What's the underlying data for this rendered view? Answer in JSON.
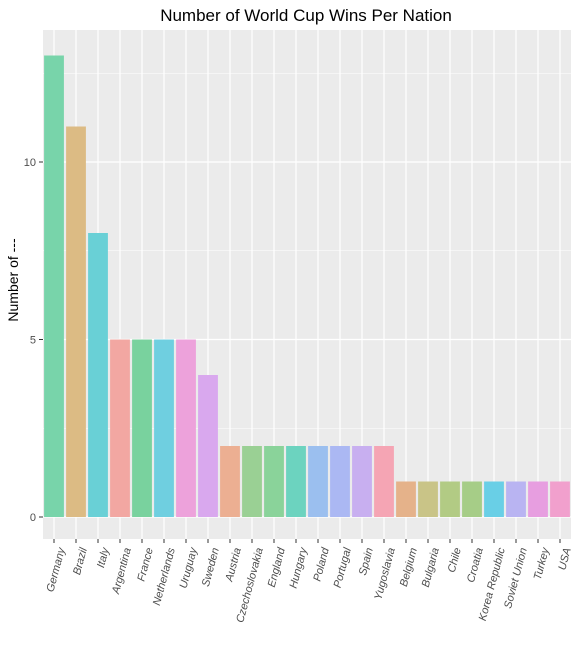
{
  "chart_data": {
    "type": "bar",
    "title": "Number of World Cup Wins Per Nation",
    "xlabel": "",
    "ylabel": "Number of ---",
    "ylim": [
      0,
      13.65
    ],
    "yticks": [
      0,
      5,
      10
    ],
    "ytick_labels": [
      "0",
      "5",
      "10"
    ],
    "grid": true,
    "legend": "none",
    "categories": [
      "Germany",
      "Brazil",
      "Italy",
      "Argentina",
      "France",
      "Netherlands",
      "Uruguay",
      "Sweden",
      "Austria",
      "Czechoslovakia",
      "England",
      "Hungary",
      "Poland",
      "Portugal",
      "Spain",
      "Yugoslavia",
      "Belgium",
      "Bulgaria",
      "Chile",
      "Croatia",
      "Korea Republic",
      "Soviet Union",
      "Turkey",
      "USA"
    ],
    "values": [
      13,
      11,
      8,
      5,
      5,
      5,
      5,
      4,
      2,
      2,
      2,
      2,
      2,
      2,
      2,
      2,
      1,
      1,
      1,
      1,
      1,
      1,
      1,
      1
    ],
    "colors": [
      "#78d4aa",
      "#dcbb84",
      "#69d0d6",
      "#f2a7a2",
      "#79d29e",
      "#6fcfe0",
      "#eda2db",
      "#d9a8ee",
      "#ecaf92",
      "#9ad094",
      "#8ad39a",
      "#6cd3bf",
      "#9bbfef",
      "#abb8f3",
      "#c8aff0",
      "#f5a5b4",
      "#e5b28a",
      "#c9c487",
      "#b2cb84",
      "#a6cd87",
      "#69cfe6",
      "#b9b4f2",
      "#e79ee0",
      "#f1a0cd"
    ],
    "background_color": "#ebebeb",
    "grid_color": "#ffffff"
  }
}
